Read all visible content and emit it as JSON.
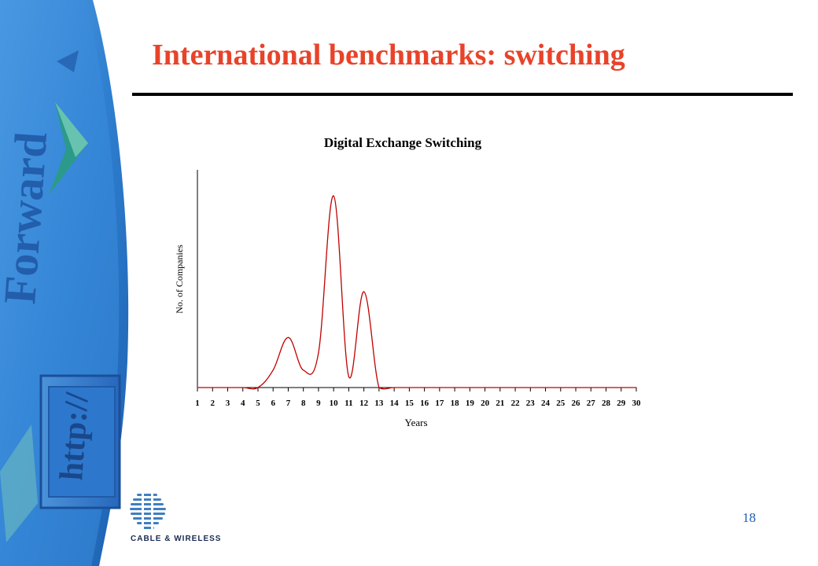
{
  "slide": {
    "title": "International benchmarks: switching",
    "page_number": "18",
    "logo_text": "CABLE & WIRELESS",
    "background_text": {
      "forward": "Forward",
      "url": "http://"
    },
    "colors": {
      "title": "#e8432a",
      "page_number": "#1f5ab0",
      "background_blue": "#2f7fd0",
      "line": "#c00000"
    }
  },
  "chart_data": {
    "type": "line",
    "title": "Digital Exchange Switching",
    "xlabel": "Years",
    "ylabel": "No. of Companies",
    "categories": [
      "1",
      "2",
      "3",
      "4",
      "5",
      "6",
      "7",
      "8",
      "9",
      "10",
      "11",
      "12",
      "13",
      "14",
      "15",
      "16",
      "17",
      "18",
      "19",
      "20",
      "21",
      "22",
      "23",
      "24",
      "25",
      "26",
      "27",
      "28",
      "29",
      "30"
    ],
    "series": [
      {
        "values": [
          0,
          0,
          0,
          0,
          0,
          0.8,
          2.3,
          0.8,
          1.6,
          8.8,
          0.5,
          4.4,
          0,
          0,
          0,
          0,
          0,
          0,
          0,
          0,
          0,
          0,
          0,
          0,
          0,
          0,
          0,
          0,
          0,
          0
        ]
      }
    ],
    "ylim": [
      0,
      10
    ],
    "grid": false,
    "legend": "none"
  }
}
